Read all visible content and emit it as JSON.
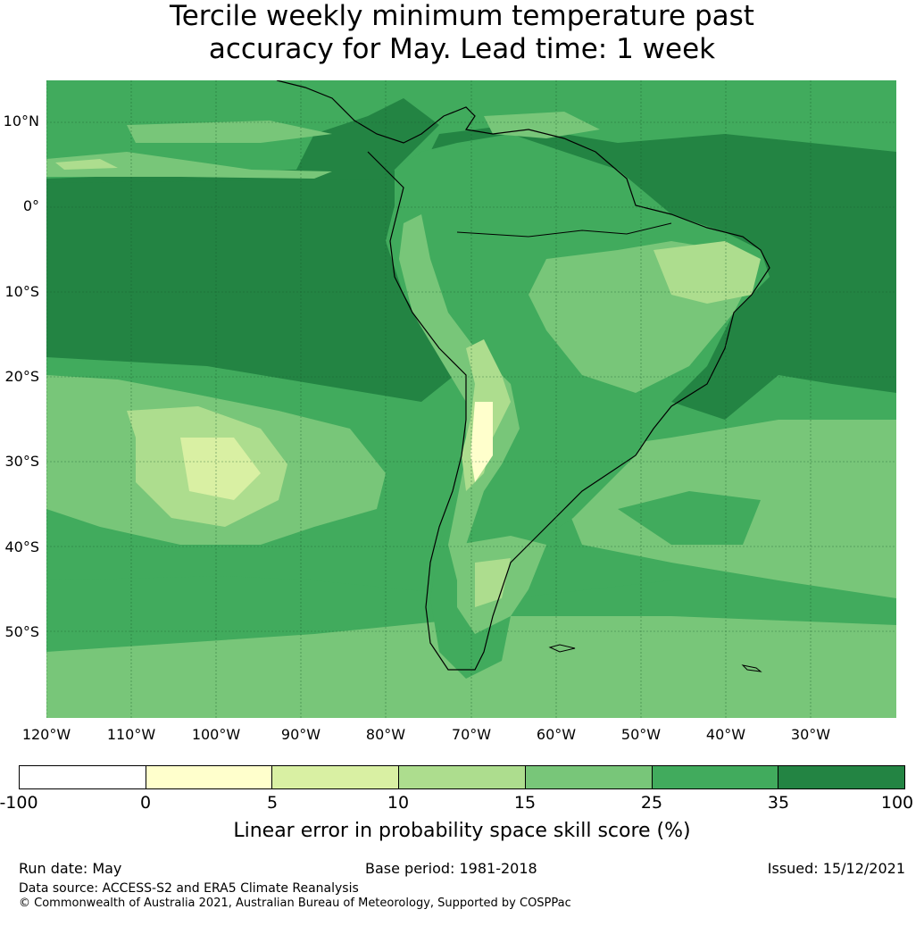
{
  "title": {
    "line1": "Tercile weekly minimum temperature past",
    "line2": "accuracy for May. Lead time: 1 week"
  },
  "map": {
    "lat_labels": [
      "10°N",
      "0°",
      "10°S",
      "20°S",
      "30°S",
      "40°S",
      "50°S"
    ],
    "lon_labels": [
      "120°W",
      "110°W",
      "100°W",
      "90°W",
      "80°W",
      "70°W",
      "60°W",
      "50°W",
      "40°W",
      "30°W"
    ],
    "colors": {
      "c_lt0": "#ffffff",
      "c_0_5": "#ffffcc",
      "c_5_10": "#d9f0a3",
      "c_10_15": "#addd8e",
      "c_15_25": "#78c679",
      "c_25_35": "#41ab5d",
      "c_35_100": "#238443",
      "gridline": "#1a5c2e",
      "coast": "#000000"
    }
  },
  "colorbar": {
    "ticks": [
      "-100",
      "0",
      "5",
      "10",
      "15",
      "25",
      "35",
      "100"
    ],
    "colors": [
      "#ffffff",
      "#ffffcc",
      "#d9f0a3",
      "#addd8e",
      "#78c679",
      "#41ab5d",
      "#238443"
    ],
    "label": "Linear error in probability space skill score (%)"
  },
  "footer": {
    "run_date": "Run date: May",
    "base_period": "Base period: 1981-2018",
    "issued": "Issued: 15/12/2021",
    "data_source": "Data source: ACCESS-S2 and ERA5 Climate Reanalysis",
    "copyright": "© Commonwealth of Australia 2021, Australian Bureau of Meteorology, Supported by COSPPac"
  }
}
